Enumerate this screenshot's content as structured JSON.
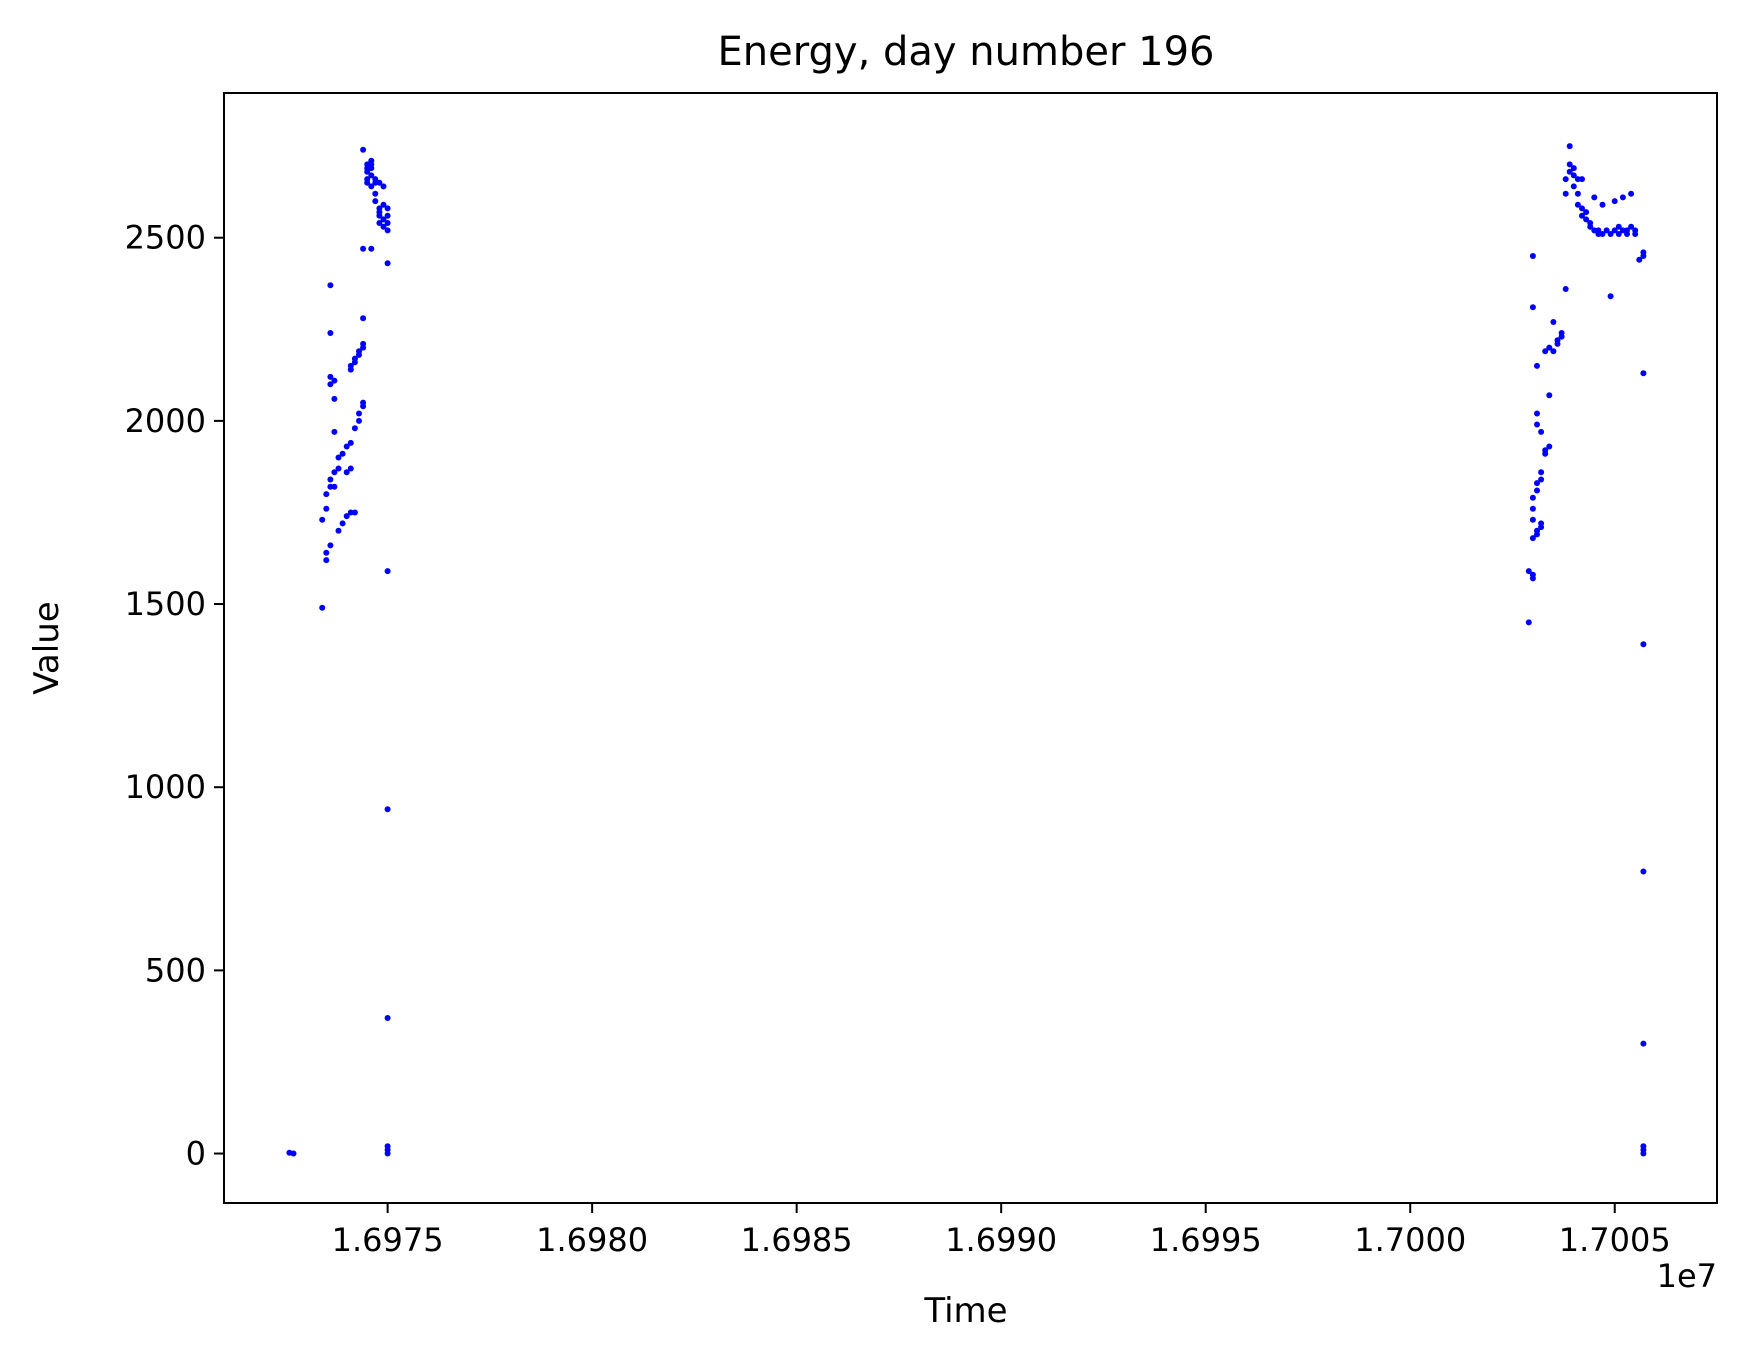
{
  "chart_data": {
    "type": "scatter",
    "title": "Energy, day number 196",
    "xlabel": "Time",
    "ylabel": "Value",
    "x_offset_label": "1e7",
    "xlim": [
      1.6971,
      1.70075
    ],
    "ylim": [
      -135,
      2895
    ],
    "xticks": [
      1.6975,
      1.698,
      1.6985,
      1.699,
      1.6995,
      1.7,
      1.7005
    ],
    "xtick_labels": [
      "1.6975",
      "1.6980",
      "1.6985",
      "1.6990",
      "1.6995",
      "1.7000",
      "1.7005"
    ],
    "yticks": [
      0,
      500,
      1000,
      1500,
      2000,
      2500
    ],
    "ytick_labels": [
      "0",
      "500",
      "1000",
      "1500",
      "2000",
      "2500"
    ],
    "grid": false,
    "legend": "none",
    "marker_color": "#0000ff",
    "series": [
      {
        "points": [
          [
            1.69726,
            2
          ],
          [
            1.69727,
            0
          ],
          [
            1.69734,
            1490
          ],
          [
            1.69735,
            1620
          ],
          [
            1.69735,
            1640
          ],
          [
            1.69736,
            1660
          ],
          [
            1.69734,
            1730
          ],
          [
            1.69735,
            1760
          ],
          [
            1.69735,
            1800
          ],
          [
            1.69736,
            1820
          ],
          [
            1.69736,
            1840
          ],
          [
            1.69737,
            1860
          ],
          [
            1.69737,
            1820
          ],
          [
            1.69738,
            1870
          ],
          [
            1.69738,
            1900
          ],
          [
            1.69738,
            1700
          ],
          [
            1.69739,
            1720
          ],
          [
            1.69739,
            1910
          ],
          [
            1.6974,
            1860
          ],
          [
            1.6974,
            1930
          ],
          [
            1.6974,
            1740
          ],
          [
            1.69741,
            1870
          ],
          [
            1.69741,
            1750
          ],
          [
            1.69741,
            1940
          ],
          [
            1.69742,
            1980
          ],
          [
            1.69742,
            1750
          ],
          [
            1.69743,
            2000
          ],
          [
            1.69743,
            2020
          ],
          [
            1.69744,
            2040
          ],
          [
            1.69744,
            2050
          ],
          [
            1.69737,
            1970
          ],
          [
            1.69737,
            2060
          ],
          [
            1.69736,
            2100
          ],
          [
            1.69736,
            2120
          ],
          [
            1.69737,
            2110
          ],
          [
            1.69736,
            2240
          ],
          [
            1.69736,
            2370
          ],
          [
            1.69741,
            2140
          ],
          [
            1.69741,
            2150
          ],
          [
            1.69742,
            2160
          ],
          [
            1.69742,
            2170
          ],
          [
            1.69743,
            2180
          ],
          [
            1.69743,
            2190
          ],
          [
            1.69744,
            2200
          ],
          [
            1.69744,
            2210
          ],
          [
            1.69744,
            2280
          ],
          [
            1.69744,
            2470
          ],
          [
            1.69746,
            2470
          ],
          [
            1.69744,
            2740
          ],
          [
            1.69745,
            2700
          ],
          [
            1.69745,
            2690
          ],
          [
            1.69745,
            2680
          ],
          [
            1.69745,
            2660
          ],
          [
            1.69745,
            2650
          ],
          [
            1.69746,
            2710
          ],
          [
            1.69746,
            2700
          ],
          [
            1.69746,
            2690
          ],
          [
            1.69746,
            2670
          ],
          [
            1.69746,
            2640
          ],
          [
            1.69747,
            2660
          ],
          [
            1.69747,
            2650
          ],
          [
            1.69747,
            2620
          ],
          [
            1.69747,
            2600
          ],
          [
            1.69748,
            2650
          ],
          [
            1.69748,
            2580
          ],
          [
            1.69748,
            2570
          ],
          [
            1.69748,
            2560
          ],
          [
            1.69748,
            2540
          ],
          [
            1.69749,
            2640
          ],
          [
            1.69749,
            2590
          ],
          [
            1.69749,
            2550
          ],
          [
            1.69749,
            2530
          ],
          [
            1.6975,
            2580
          ],
          [
            1.6975,
            2560
          ],
          [
            1.6975,
            2540
          ],
          [
            1.6975,
            2520
          ],
          [
            1.6975,
            2430
          ],
          [
            1.6975,
            1590
          ],
          [
            1.6975,
            940
          ],
          [
            1.6975,
            370
          ],
          [
            1.6975,
            20
          ],
          [
            1.6975,
            10
          ],
          [
            1.6975,
            0
          ],
          [
            1.70029,
            1450
          ],
          [
            1.70029,
            1590
          ],
          [
            1.7003,
            1580
          ],
          [
            1.7003,
            1570
          ],
          [
            1.7003,
            1680
          ],
          [
            1.7003,
            1730
          ],
          [
            1.7003,
            1760
          ],
          [
            1.7003,
            1790
          ],
          [
            1.70031,
            1690
          ],
          [
            1.70031,
            1700
          ],
          [
            1.70031,
            1810
          ],
          [
            1.70031,
            1830
          ],
          [
            1.70032,
            1710
          ],
          [
            1.70032,
            1720
          ],
          [
            1.70032,
            1840
          ],
          [
            1.70032,
            1860
          ],
          [
            1.70031,
            1990
          ],
          [
            1.70031,
            2020
          ],
          [
            1.70031,
            2150
          ],
          [
            1.7003,
            2310
          ],
          [
            1.7003,
            2450
          ],
          [
            1.70032,
            1970
          ],
          [
            1.70033,
            1910
          ],
          [
            1.70033,
            1920
          ],
          [
            1.70034,
            1930
          ],
          [
            1.70034,
            2070
          ],
          [
            1.70034,
            2200
          ],
          [
            1.70035,
            2190
          ],
          [
            1.70035,
            2270
          ],
          [
            1.70036,
            2210
          ],
          [
            1.70036,
            2220
          ],
          [
            1.70037,
            2230
          ],
          [
            1.70037,
            2240
          ],
          [
            1.70038,
            2360
          ],
          [
            1.70033,
            2190
          ],
          [
            1.70038,
            2620
          ],
          [
            1.70038,
            2660
          ],
          [
            1.70039,
            2700
          ],
          [
            1.70039,
            2680
          ],
          [
            1.70039,
            2750
          ],
          [
            1.7004,
            2690
          ],
          [
            1.7004,
            2670
          ],
          [
            1.7004,
            2640
          ],
          [
            1.70041,
            2660
          ],
          [
            1.70041,
            2620
          ],
          [
            1.70041,
            2590
          ],
          [
            1.70042,
            2660
          ],
          [
            1.70042,
            2580
          ],
          [
            1.70042,
            2560
          ],
          [
            1.70043,
            2570
          ],
          [
            1.70043,
            2550
          ],
          [
            1.70044,
            2540
          ],
          [
            1.70044,
            2530
          ],
          [
            1.70045,
            2520
          ],
          [
            1.70045,
            2610
          ],
          [
            1.70046,
            2510
          ],
          [
            1.70046,
            2520
          ],
          [
            1.70047,
            2590
          ],
          [
            1.70047,
            2510
          ],
          [
            1.70048,
            2520
          ],
          [
            1.70049,
            2510
          ],
          [
            1.70049,
            2340
          ],
          [
            1.7005,
            2600
          ],
          [
            1.7005,
            2520
          ],
          [
            1.70051,
            2530
          ],
          [
            1.70051,
            2510
          ],
          [
            1.70052,
            2610
          ],
          [
            1.70052,
            2520
          ],
          [
            1.70053,
            2520
          ],
          [
            1.70053,
            2510
          ],
          [
            1.70054,
            2620
          ],
          [
            1.70054,
            2530
          ],
          [
            1.70055,
            2520
          ],
          [
            1.70055,
            2510
          ],
          [
            1.70056,
            2440
          ],
          [
            1.70057,
            2450
          ],
          [
            1.70057,
            2460
          ],
          [
            1.70057,
            2130
          ],
          [
            1.70057,
            1390
          ],
          [
            1.70057,
            770
          ],
          [
            1.70057,
            300
          ],
          [
            1.70057,
            20
          ],
          [
            1.70057,
            10
          ],
          [
            1.70057,
            0
          ]
        ]
      }
    ]
  }
}
